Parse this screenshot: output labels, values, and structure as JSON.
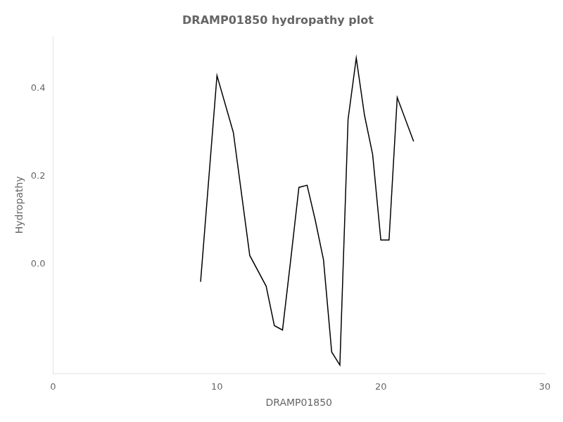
{
  "chart_data": {
    "type": "line",
    "title": "DRAMP01850 hydropathy plot",
    "xlabel": "DRAMP01850",
    "ylabel": "Hydropathy",
    "x": [
      9,
      10,
      11,
      12,
      13,
      13.5,
      14,
      14.5,
      15,
      15.5,
      16,
      16.5,
      17,
      17.5,
      18,
      18.5,
      19,
      19.5,
      20,
      20.5,
      21,
      22
    ],
    "values": [
      -0.04,
      0.43,
      0.3,
      0.02,
      -0.05,
      -0.14,
      -0.15,
      0.01,
      0.175,
      0.18,
      0.1,
      0.01,
      -0.2,
      -0.23,
      0.33,
      0.47,
      0.34,
      0.25,
      0.055,
      0.055,
      0.38,
      0.28
    ],
    "color": "#000000",
    "xlim": [
      0,
      30
    ],
    "xticks": [
      0,
      10,
      20,
      30
    ],
    "ylim": [
      -0.25,
      0.52
    ],
    "yticks": [
      {
        "value": 0.0,
        "label": "0.0"
      },
      0.2,
      0.4
    ],
    "grid": false
  }
}
